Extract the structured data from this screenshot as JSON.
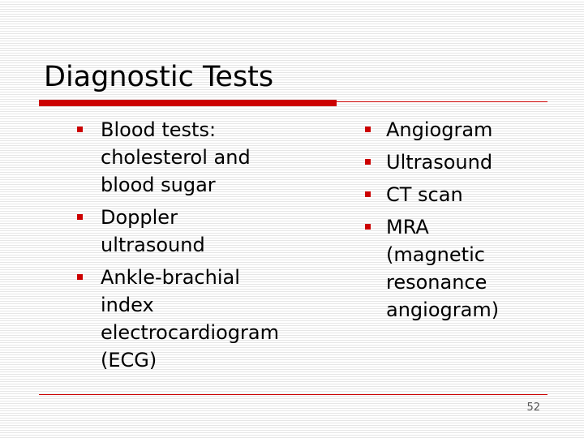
{
  "title": "Diagnostic Tests",
  "left_items": [
    "Blood tests: cholesterol and blood sugar",
    "Doppler ultrasound",
    "Ankle-brachial index electrocardiogram (ECG)"
  ],
  "right_items": [
    "Angiogram",
    "Ultrasound",
    "CT scan",
    "MRA (magnetic resonance angiogram)"
  ],
  "page_number": "52",
  "colors": {
    "accent": "#cc0000"
  }
}
